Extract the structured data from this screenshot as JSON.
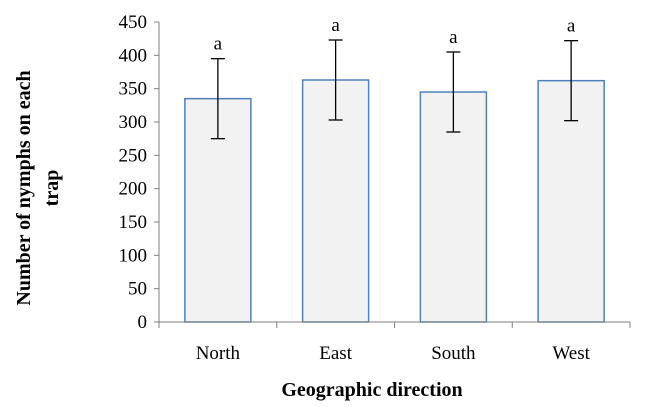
{
  "chart_data": {
    "type": "bar",
    "title": "",
    "xlabel": "Geographic direction",
    "ylabel_lines": [
      "Number of nymphs on each",
      "trap"
    ],
    "categories": [
      "North",
      "East",
      "South",
      "West"
    ],
    "values": [
      335,
      363,
      345,
      362
    ],
    "error": [
      60,
      60,
      60,
      60
    ],
    "significance_labels": [
      "a",
      "a",
      "a",
      "a"
    ],
    "ylim": [
      0,
      450
    ],
    "yticks": [
      0,
      50,
      100,
      150,
      200,
      250,
      300,
      350,
      400,
      450
    ],
    "ytick_labels": [
      "0",
      "50",
      "100",
      "150",
      "200",
      "250",
      "300",
      "350",
      "400",
      "450"
    ],
    "grid": false,
    "legend": "none",
    "colors": {
      "bar_fill": "#f2f2f2",
      "bar_stroke": "#4f81bd",
      "axis": "#808080",
      "error_bar": "#000000"
    }
  }
}
